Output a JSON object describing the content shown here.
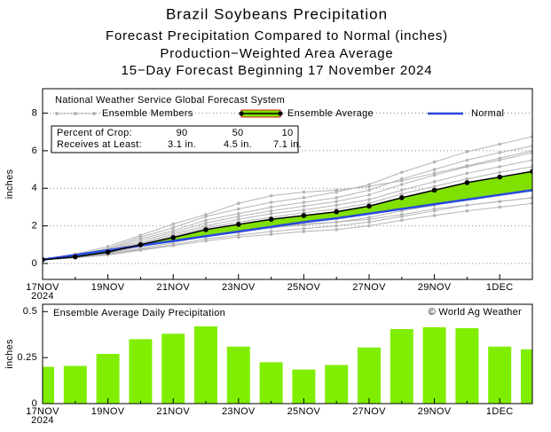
{
  "chart_data": [
    {
      "type": "line",
      "title": "Brazil Soybeans Precipitation",
      "subtitles": [
        "Forecast Precipitation Compared to Normal (inches)",
        "Production−Weighted Area Average",
        "15−Day Forecast Beginning 17 November 2024"
      ],
      "ylabel": "inches",
      "categories": [
        "17NOV",
        null,
        "19NOV",
        null,
        "21NOV",
        null,
        "23NOV",
        null,
        "25NOV",
        null,
        "27NOV",
        null,
        "29NOV",
        null,
        "1DEC",
        null
      ],
      "x_year_label": "2024",
      "ylim": [
        -0.85,
        9.3
      ],
      "yticks": [
        0,
        2,
        4,
        6,
        8
      ],
      "grid": true,
      "legend_loc": "upper left",
      "legend_title": "National Weather Service Global Forecast System",
      "crop_table": [
        [
          "Percent of Crop:",
          "90",
          "50",
          "10"
        ],
        [
          "Receives at Least:",
          "3.1 in.",
          "4.5 in.",
          "7.1 in."
        ]
      ],
      "series": [
        {
          "name": "Ensemble Members",
          "color": "#b4b4b4",
          "values": [
            [
              0.2,
              0.3,
              0.45,
              0.7,
              0.95,
              1.2,
              1.4,
              1.55,
              1.7,
              1.8,
              2.0,
              2.3,
              2.55,
              2.8,
              3.0,
              3.2
            ],
            [
              0.2,
              0.3,
              0.5,
              0.75,
              1.0,
              1.3,
              1.5,
              1.7,
              1.85,
              2.0,
              2.2,
              2.5,
              2.8,
              3.1,
              3.3,
              3.5
            ],
            [
              0.2,
              0.3,
              0.55,
              0.9,
              1.2,
              1.5,
              1.75,
              1.95,
              2.1,
              2.2,
              2.35,
              2.6,
              2.9,
              3.1,
              3.3,
              3.5
            ],
            [
              0.2,
              0.3,
              0.5,
              0.8,
              1.1,
              1.45,
              1.65,
              1.9,
              2.05,
              2.2,
              2.45,
              2.8,
              3.1,
              3.45,
              3.7,
              3.9
            ],
            [
              0.2,
              0.35,
              0.55,
              0.9,
              1.2,
              1.6,
              1.85,
              2.1,
              2.25,
              2.4,
              2.7,
              3.1,
              3.4,
              3.8,
              4.05,
              4.3
            ],
            [
              0.2,
              0.35,
              0.6,
              0.95,
              1.3,
              1.7,
              2.0,
              2.2,
              2.4,
              2.6,
              2.9,
              3.3,
              3.7,
              4.1,
              4.35,
              4.65
            ],
            [
              0.2,
              0.4,
              0.65,
              1.05,
              1.45,
              1.9,
              2.2,
              2.45,
              2.7,
              2.9,
              3.2,
              3.7,
              4.1,
              4.5,
              4.85,
              5.15
            ],
            [
              0.2,
              0.4,
              0.7,
              1.1,
              1.55,
              2.0,
              2.35,
              2.65,
              2.85,
              3.1,
              3.4,
              3.9,
              4.35,
              4.8,
              5.15,
              5.5
            ],
            [
              0.2,
              0.4,
              0.7,
              1.2,
              1.65,
              2.15,
              2.5,
              2.8,
              3.05,
              3.3,
              3.65,
              4.2,
              4.7,
              5.15,
              5.5,
              5.9
            ],
            [
              0.2,
              0.5,
              0.9,
              1.5,
              2.1,
              2.6,
              3.2,
              3.6,
              3.8,
              3.9,
              4.1,
              4.4,
              4.8,
              5.2,
              5.6,
              6.0
            ],
            [
              0.2,
              0.45,
              0.75,
              1.3,
              1.75,
              2.3,
              2.65,
              3.0,
              3.25,
              3.5,
              3.9,
              4.5,
              5.0,
              5.5,
              5.9,
              6.25
            ],
            [
              0.2,
              0.45,
              0.8,
              1.4,
              1.9,
              2.5,
              2.9,
              3.25,
              3.5,
              3.8,
              4.2,
              4.85,
              5.4,
              5.95,
              6.35,
              6.75
            ]
          ]
        },
        {
          "name": "Ensemble Average",
          "color": "#000000",
          "fill": "#80e000",
          "edge": "#e02020",
          "values": [
            0.2,
            0.35,
            0.6,
            1.0,
            1.38,
            1.8,
            2.08,
            2.35,
            2.55,
            2.75,
            3.05,
            3.5,
            3.9,
            4.3,
            4.6,
            4.9
          ]
        },
        {
          "name": "Normal",
          "color": "#2848e0",
          "values": [
            0.2,
            0.45,
            0.7,
            0.95,
            1.2,
            1.45,
            1.7,
            1.95,
            2.2,
            2.4,
            2.65,
            2.9,
            3.15,
            3.4,
            3.65,
            3.9
          ]
        }
      ]
    },
    {
      "type": "bar",
      "title": "Ensemble Average Daily Precipitation",
      "credit": "© World Ag Weather",
      "ylabel": "inches",
      "categories": [
        "17NOV",
        null,
        "19NOV",
        null,
        "21NOV",
        null,
        "23NOV",
        null,
        "25NOV",
        null,
        "27NOV",
        null,
        "29NOV",
        null,
        "1DEC",
        null
      ],
      "x_year_label": "2024",
      "ylim": [
        0,
        0.54
      ],
      "yticks": [
        0,
        0.25,
        0.5
      ],
      "grid": false,
      "color": "#80ee00",
      "values": [
        0.2,
        0.205,
        0.27,
        0.35,
        0.38,
        0.42,
        0.31,
        0.225,
        0.185,
        0.21,
        0.305,
        0.405,
        0.415,
        0.41,
        0.31,
        0.295
      ]
    }
  ]
}
